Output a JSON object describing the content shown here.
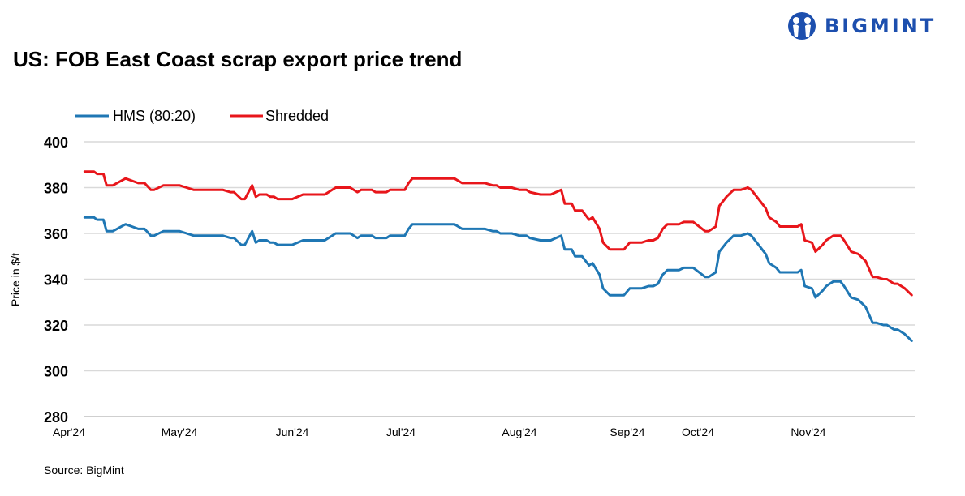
{
  "logo": {
    "text": "BIGMINT",
    "color": "#1d4fae"
  },
  "source": "Source: BigMint",
  "chart_data": {
    "type": "line",
    "title": "US: FOB East Coast scrap export price trend",
    "ylabel": "Price in $/t",
    "xlabel": "",
    "ylim": [
      280,
      400
    ],
    "yticks": [
      280,
      300,
      320,
      340,
      360,
      380,
      400
    ],
    "xlim": [
      "2024-04-01",
      "2024-11-30"
    ],
    "xtick_labels": [
      {
        "date": "2024-04-01",
        "label": "Apr'24"
      },
      {
        "date": "2024-05-01",
        "label": "May'24"
      },
      {
        "date": "2024-06-01",
        "label": "Jun'24"
      },
      {
        "date": "2024-07-01",
        "label": "Jul'24"
      },
      {
        "date": "2024-08-01",
        "label": "Aug'24"
      },
      {
        "date": "2024-09-01",
        "label": "Sep'24"
      },
      {
        "date": "2024-10-01",
        "label": "Oct'24"
      },
      {
        "date": "2024-11-01",
        "label": "Nov'24"
      }
    ],
    "grid": true,
    "legend": "top-left",
    "x": [
      "2024-04-01",
      "2024-04-04",
      "2024-04-05",
      "2024-04-07",
      "2024-04-08",
      "2024-04-10",
      "2024-04-14",
      "2024-04-16",
      "2024-04-18",
      "2024-04-20",
      "2024-04-22",
      "2024-04-23",
      "2024-04-26",
      "2024-05-01",
      "2024-05-03",
      "2024-05-05",
      "2024-05-13",
      "2024-05-15",
      "2024-05-16",
      "2024-05-18",
      "2024-05-19",
      "2024-05-21",
      "2024-05-22",
      "2024-05-23",
      "2024-05-25",
      "2024-05-26",
      "2024-05-27",
      "2024-05-28",
      "2024-06-01",
      "2024-06-04",
      "2024-06-10",
      "2024-06-13",
      "2024-06-17",
      "2024-06-19",
      "2024-06-20",
      "2024-06-23",
      "2024-06-24",
      "2024-06-27",
      "2024-06-28",
      "2024-07-01",
      "2024-07-02",
      "2024-07-03",
      "2024-07-04",
      "2024-07-15",
      "2024-07-17",
      "2024-07-23",
      "2024-07-25",
      "2024-07-26",
      "2024-07-27",
      "2024-07-30",
      "2024-08-01",
      "2024-08-03",
      "2024-08-04",
      "2024-08-07",
      "2024-08-10",
      "2024-08-13",
      "2024-08-14",
      "2024-08-16",
      "2024-08-17",
      "2024-08-19",
      "2024-08-21",
      "2024-08-22",
      "2024-08-24",
      "2024-08-25",
      "2024-08-27",
      "2024-08-31",
      "2024-09-02",
      "2024-09-07",
      "2024-09-10",
      "2024-09-12",
      "2024-09-14",
      "2024-09-16",
      "2024-09-18",
      "2024-09-23",
      "2024-09-25",
      "2024-09-29",
      "2024-10-03",
      "2024-10-04",
      "2024-10-06",
      "2024-10-07",
      "2024-10-09",
      "2024-10-11",
      "2024-10-13",
      "2024-10-15",
      "2024-10-16",
      "2024-10-18",
      "2024-10-20",
      "2024-10-21",
      "2024-10-23",
      "2024-10-24",
      "2024-10-29",
      "2024-10-30",
      "2024-10-31",
      "2024-11-02",
      "2024-11-03",
      "2024-11-05",
      "2024-11-06",
      "2024-11-08",
      "2024-11-10",
      "2024-11-11",
      "2024-11-13",
      "2024-11-15",
      "2024-11-17",
      "2024-11-19",
      "2024-11-20",
      "2024-11-22",
      "2024-11-23",
      "2024-11-25",
      "2024-11-26",
      "2024-11-28",
      "2024-11-30"
    ],
    "series": [
      {
        "name": "HMS (80:20)",
        "color": "#1f77b4",
        "values": [
          367,
          367,
          366,
          366,
          361,
          361,
          364,
          363,
          362,
          362,
          359,
          359,
          361,
          361,
          360,
          359,
          359,
          358,
          358,
          355,
          355,
          361,
          356,
          357,
          357,
          356,
          356,
          355,
          355,
          357,
          357,
          360,
          360,
          358,
          359,
          359,
          358,
          358,
          359,
          359,
          359,
          362,
          364,
          364,
          362,
          362,
          361,
          361,
          360,
          360,
          359,
          359,
          358,
          357,
          357,
          359,
          353,
          353,
          350,
          350,
          346,
          347,
          342,
          336,
          333,
          333,
          336,
          336,
          337,
          337,
          338,
          342,
          344,
          344,
          345,
          345,
          341,
          341,
          343,
          352,
          356,
          359,
          359,
          360,
          359,
          355,
          351,
          347,
          345,
          343,
          343,
          344,
          337,
          336,
          332,
          335,
          337,
          339,
          339,
          337,
          332,
          331,
          328,
          321,
          321,
          320,
          320,
          318,
          318,
          316,
          313
        ]
      },
      {
        "name": "Shredded",
        "color": "#e8161b",
        "values": [
          387,
          387,
          386,
          386,
          381,
          381,
          384,
          383,
          382,
          382,
          379,
          379,
          381,
          381,
          380,
          379,
          379,
          378,
          378,
          375,
          375,
          381,
          376,
          377,
          377,
          376,
          376,
          375,
          375,
          377,
          377,
          380,
          380,
          378,
          379,
          379,
          378,
          378,
          379,
          379,
          379,
          382,
          384,
          384,
          382,
          382,
          381,
          381,
          380,
          380,
          379,
          379,
          378,
          377,
          377,
          379,
          373,
          373,
          370,
          370,
          366,
          367,
          362,
          356,
          353,
          353,
          356,
          356,
          357,
          357,
          358,
          362,
          364,
          364,
          365,
          365,
          361,
          361,
          363,
          372,
          376,
          379,
          379,
          380,
          379,
          375,
          371,
          367,
          365,
          363,
          363,
          364,
          357,
          356,
          352,
          355,
          357,
          359,
          359,
          357,
          352,
          351,
          348,
          341,
          341,
          340,
          340,
          338,
          338,
          336,
          333
        ]
      }
    ]
  }
}
